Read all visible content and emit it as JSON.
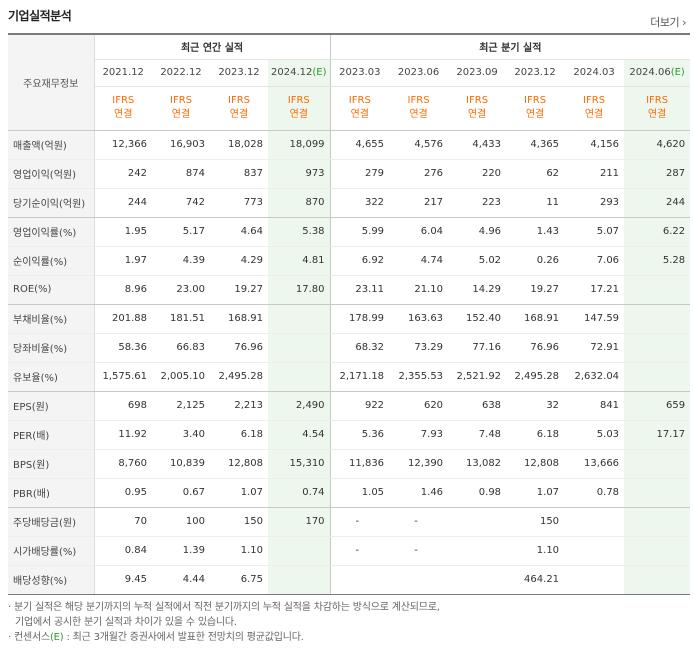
{
  "title": "기업실적분석",
  "more_label": "더보기",
  "header": {
    "corner": "주요재무정보",
    "annual_group": "최근 연간 실적",
    "quarter_group": "최근 분기 실적",
    "periods": [
      "2021.12",
      "2022.12",
      "2023.12",
      "2024.12",
      "2023.03",
      "2023.06",
      "2023.09",
      "2023.12",
      "2024.03",
      "2024.06"
    ],
    "estimate_mark": "(E)",
    "ifrs_line1": "IFRS",
    "ifrs_line2": "연결"
  },
  "rows": [
    {
      "label": "매출액(억원)",
      "values": [
        "12,366",
        "16,903",
        "18,028",
        "18,099",
        "4,655",
        "4,576",
        "4,433",
        "4,365",
        "4,156",
        "4,620"
      ]
    },
    {
      "label": "영업이익(억원)",
      "values": [
        "242",
        "874",
        "837",
        "973",
        "279",
        "276",
        "220",
        "62",
        "211",
        "287"
      ]
    },
    {
      "label": "당기순이익(억원)",
      "values": [
        "244",
        "742",
        "773",
        "870",
        "322",
        "217",
        "223",
        "11",
        "293",
        "244"
      ]
    },
    {
      "label": "영업이익률(%)",
      "values": [
        "1.95",
        "5.17",
        "4.64",
        "5.38",
        "5.99",
        "6.04",
        "4.96",
        "1.43",
        "5.07",
        "6.22"
      ]
    },
    {
      "label": "순이익률(%)",
      "values": [
        "1.97",
        "4.39",
        "4.29",
        "4.81",
        "6.92",
        "4.74",
        "5.02",
        "0.26",
        "7.06",
        "5.28"
      ]
    },
    {
      "label": "ROE(%)",
      "values": [
        "8.96",
        "23.00",
        "19.27",
        "17.80",
        "23.11",
        "21.10",
        "14.29",
        "19.27",
        "17.21",
        ""
      ]
    },
    {
      "label": "부채비율(%)",
      "values": [
        "201.88",
        "181.51",
        "168.91",
        "",
        "178.99",
        "163.63",
        "152.40",
        "168.91",
        "147.59",
        ""
      ]
    },
    {
      "label": "당좌비율(%)",
      "values": [
        "58.36",
        "66.83",
        "76.96",
        "",
        "68.32",
        "73.29",
        "77.16",
        "76.96",
        "72.91",
        ""
      ]
    },
    {
      "label": "유보율(%)",
      "values": [
        "1,575.61",
        "2,005.10",
        "2,495.28",
        "",
        "2,171.18",
        "2,355.53",
        "2,521.92",
        "2,495.28",
        "2,632.04",
        ""
      ]
    },
    {
      "label": "EPS(원)",
      "values": [
        "698",
        "2,125",
        "2,213",
        "2,490",
        "922",
        "620",
        "638",
        "32",
        "841",
        "659"
      ]
    },
    {
      "label": "PER(배)",
      "values": [
        "11.92",
        "3.40",
        "6.18",
        "4.54",
        "5.36",
        "7.93",
        "7.48",
        "6.18",
        "5.03",
        "17.17"
      ]
    },
    {
      "label": "BPS(원)",
      "values": [
        "8,760",
        "10,839",
        "12,808",
        "15,310",
        "11,836",
        "12,390",
        "13,082",
        "12,808",
        "13,666",
        ""
      ]
    },
    {
      "label": "PBR(배)",
      "values": [
        "0.95",
        "0.67",
        "1.07",
        "0.74",
        "1.05",
        "1.46",
        "0.98",
        "1.07",
        "0.78",
        ""
      ]
    },
    {
      "label": "주당배당금(원)",
      "values": [
        "70",
        "100",
        "150",
        "170",
        "-",
        "-",
        "",
        "150",
        "",
        ""
      ]
    },
    {
      "label": "시가배당률(%)",
      "values": [
        "0.84",
        "1.39",
        "1.10",
        "",
        "-",
        "-",
        "",
        "1.10",
        "",
        ""
      ]
    },
    {
      "label": "배당성향(%)",
      "values": [
        "9.45",
        "4.44",
        "6.75",
        "",
        "",
        "",
        "",
        "464.21",
        "",
        ""
      ]
    }
  ],
  "notes": {
    "line1": "분기 실적은 해당 분기까지의 누적 실적에서 직전 분기까지의 누적 실적을 차감하는 방식으로 계산되므로,",
    "line2": "기업에서 공시한 분기 실적과 차이가 있을 수 있습니다.",
    "line3_prefix": "컨센서스",
    "line3_mark": "(E)",
    "line3_suffix": ": 최근 3개월간 증권사에서 발표한 전망치의 평균값입니다."
  }
}
